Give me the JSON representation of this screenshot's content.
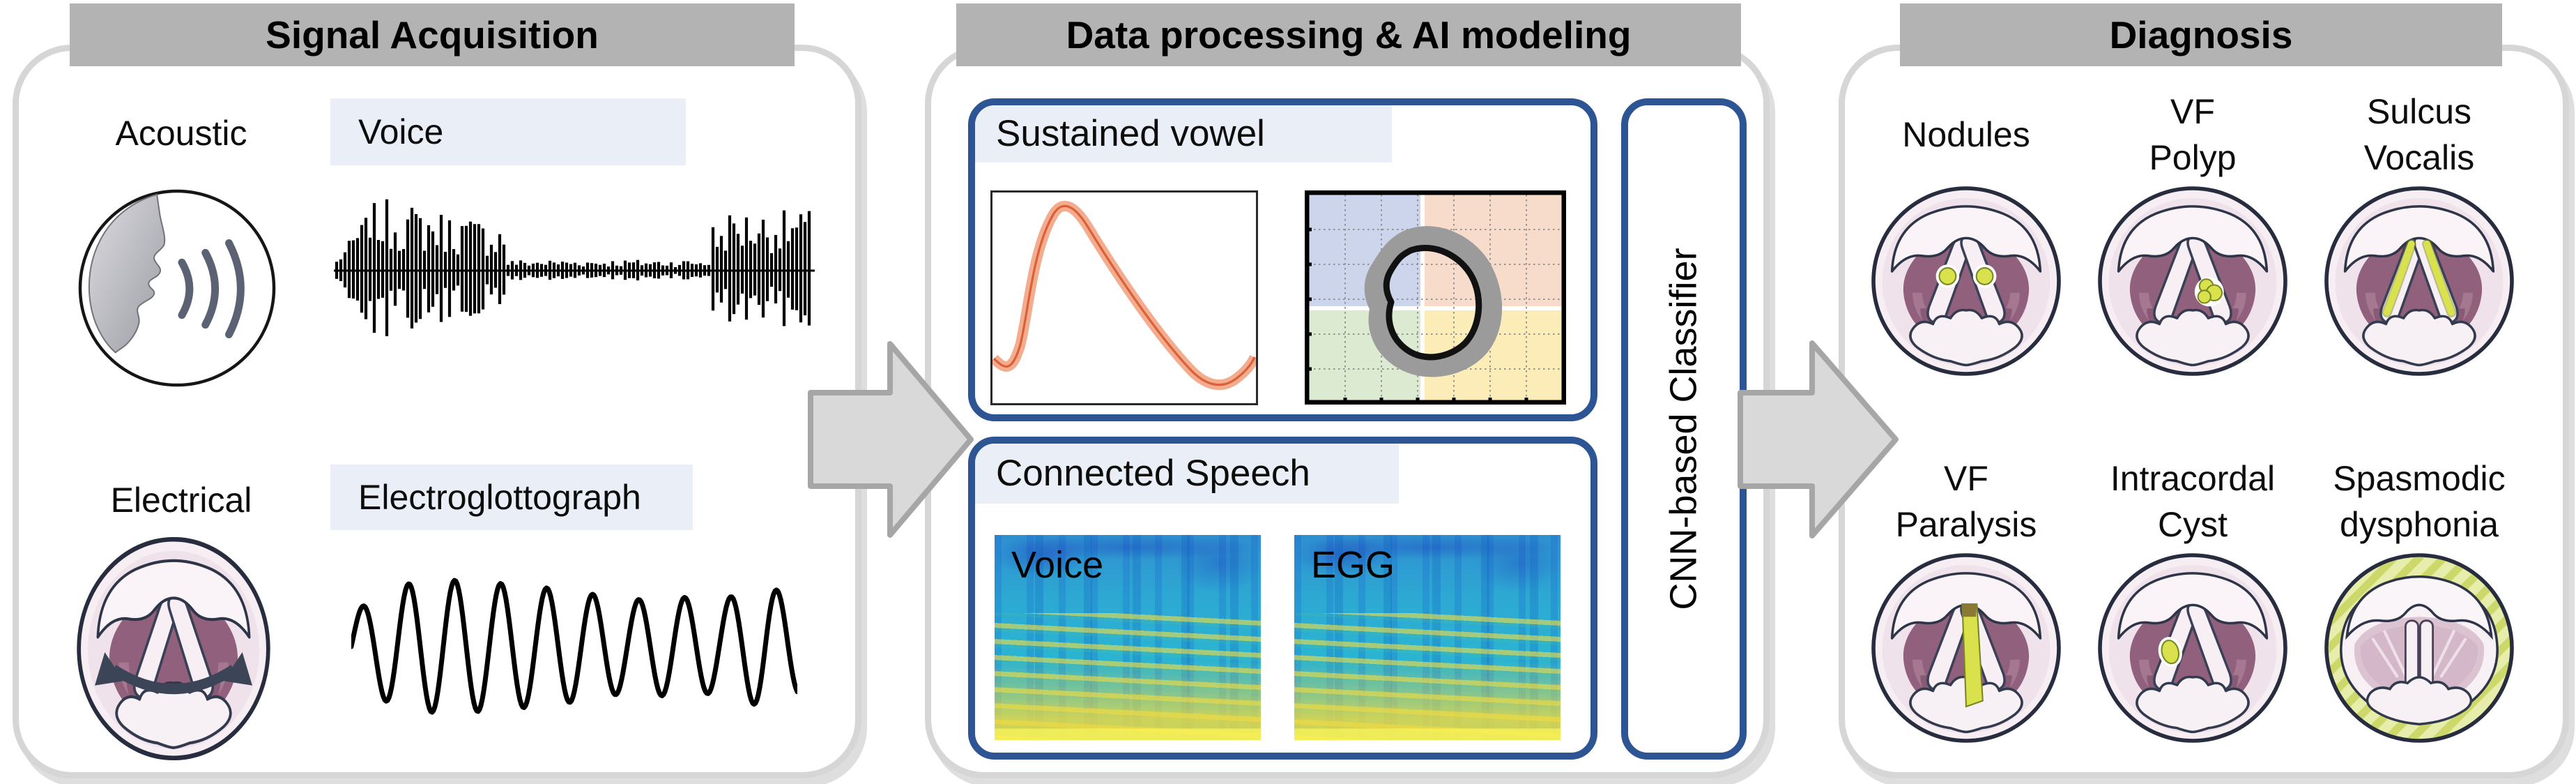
{
  "colors": {
    "header_bg": "#b3b3b3",
    "chip_bg": "#e9eef7",
    "box_border": "#2e5593",
    "arrow_fill": "#d9d9d9",
    "arrow_stroke": "#a6a6a6",
    "lesion_highlight": "#d9e24c",
    "curve_band": "#f3ad8e",
    "curve_line": "#d96038",
    "quadrant_top_left": "#ccd5eb",
    "quadrant_top_right": "#f8dccb",
    "quadrant_bottom_left": "#dcead2",
    "quadrant_bottom_right": "#fcecb8"
  },
  "icons": {
    "speaking_face": "face-profile-with-sound-waves-icon",
    "larynx": "endoscopic-larynx-view-icon",
    "motion_arrow": "double-headed-curved-arrow-icon",
    "flow_arrow": "right-block-arrow-icon"
  },
  "panels": {
    "signal": {
      "title": "Signal Acquisition",
      "acoustic": {
        "modality": "Acoustic",
        "signal": "Voice"
      },
      "electrical": {
        "modality": "Electrical",
        "signal": "Electroglottograph"
      }
    },
    "processing": {
      "title": "Data processing & AI modeling",
      "sustained": {
        "label": "Sustained vowel"
      },
      "connected": {
        "label": "Connected Speech",
        "spec1_label": "Voice",
        "spec2_label": "EGG"
      },
      "classifier_label": "CNN-based Classifier"
    },
    "diagnosis": {
      "title": "Diagnosis",
      "conditions": [
        {
          "line1": "Nodules",
          "line2": ""
        },
        {
          "line1": "VF",
          "line2": "Polyp"
        },
        {
          "line1": "Sulcus",
          "line2": "Vocalis"
        },
        {
          "line1": "VF",
          "line2": "Paralysis"
        },
        {
          "line1": "Intracordal",
          "line2": "Cyst"
        },
        {
          "line1": "Spasmodic",
          "line2": "dysphonia"
        }
      ]
    }
  }
}
